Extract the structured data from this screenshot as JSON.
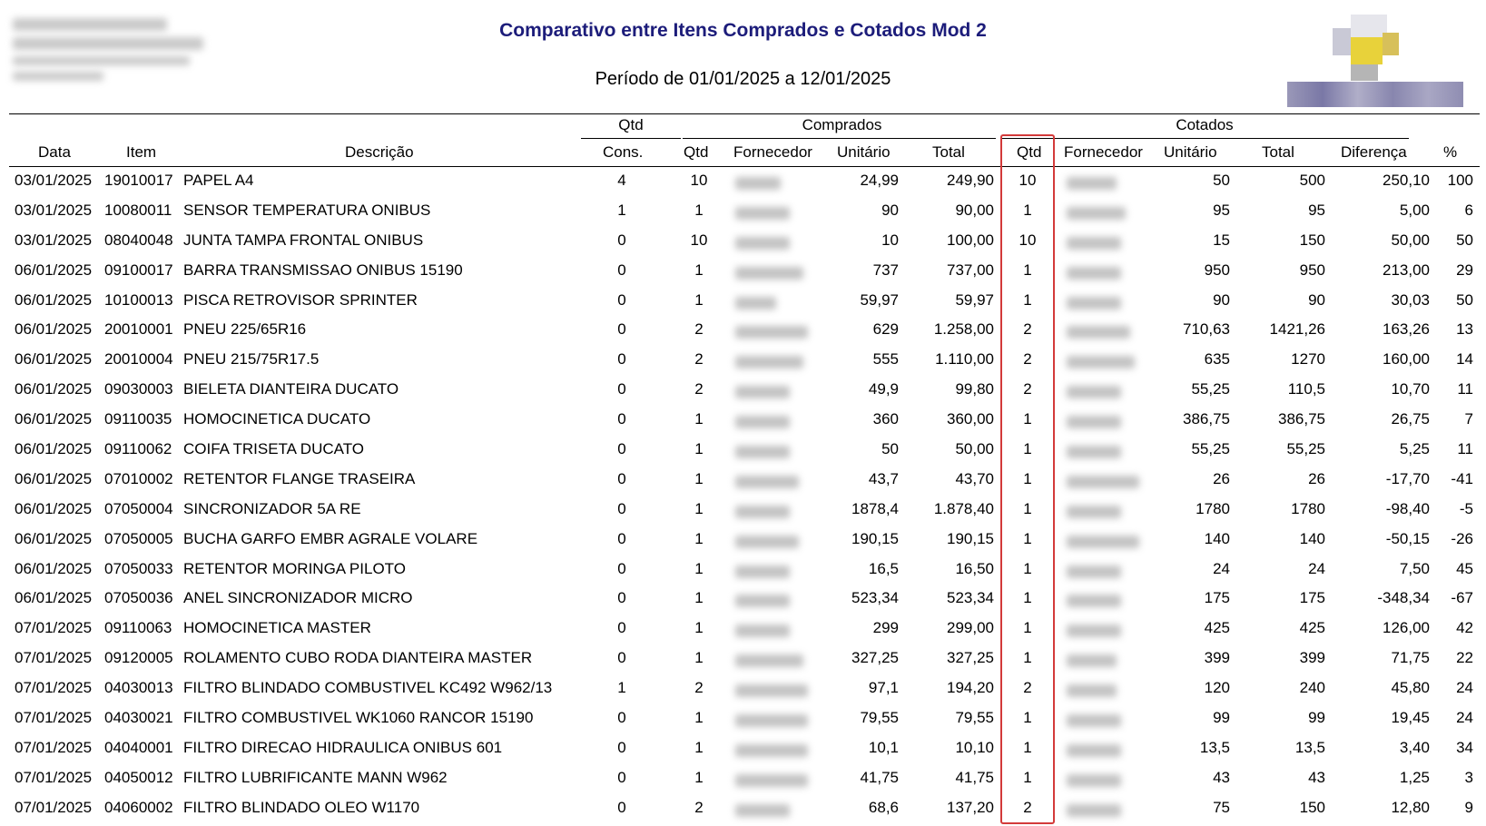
{
  "report": {
    "title": "Comparativo entre Itens Comprados e Cotados Mod 2",
    "period": "Período de 01/01/2025 a 12/01/2025"
  },
  "groups": {
    "qtd": "Qtd",
    "comprados": "Comprados",
    "cotados": "Cotados"
  },
  "columns": {
    "data": "Data",
    "item": "Item",
    "descricao": "Descrição",
    "cons": "Cons.",
    "qtd": "Qtd",
    "fornecedor": "Fornecedor",
    "unitario": "Unitário",
    "total": "Total",
    "qtd_cot": "Qtd",
    "fornecedor_cot": "Fornecedor",
    "unitario_cot": "Unitário",
    "total_cot": "Total",
    "diferenca": "Diferença",
    "pct": "%"
  },
  "highlight_color": "#d33a3a",
  "rows": [
    {
      "data": "03/01/2025",
      "item": "19010017",
      "desc": "PAPEL A4",
      "cons": "4",
      "qtd": "10",
      "unit": "24,99",
      "total": "249,90",
      "qtd_cot": "10",
      "unit_cot": "50",
      "total_cot": "500",
      "dif": "250,10",
      "pct": "100"
    },
    {
      "data": "03/01/2025",
      "item": "10080011",
      "desc": "SENSOR TEMPERATURA ONIBUS",
      "cons": "1",
      "qtd": "1",
      "unit": "90",
      "total": "90,00",
      "qtd_cot": "1",
      "unit_cot": "95",
      "total_cot": "95",
      "dif": "5,00",
      "pct": "6"
    },
    {
      "data": "03/01/2025",
      "item": "08040048",
      "desc": "JUNTA TAMPA FRONTAL ONIBUS",
      "cons": "0",
      "qtd": "10",
      "unit": "10",
      "total": "100,00",
      "qtd_cot": "10",
      "unit_cot": "15",
      "total_cot": "150",
      "dif": "50,00",
      "pct": "50"
    },
    {
      "data": "06/01/2025",
      "item": "09100017",
      "desc": "BARRA TRANSMISSAO ONIBUS 15190",
      "cons": "0",
      "qtd": "1",
      "unit": "737",
      "total": "737,00",
      "qtd_cot": "1",
      "unit_cot": "950",
      "total_cot": "950",
      "dif": "213,00",
      "pct": "29"
    },
    {
      "data": "06/01/2025",
      "item": "10100013",
      "desc": "PISCA RETROVISOR SPRINTER",
      "cons": "0",
      "qtd": "1",
      "unit": "59,97",
      "total": "59,97",
      "qtd_cot": "1",
      "unit_cot": "90",
      "total_cot": "90",
      "dif": "30,03",
      "pct": "50"
    },
    {
      "data": "06/01/2025",
      "item": "20010001",
      "desc": "PNEU 225/65R16",
      "cons": "0",
      "qtd": "2",
      "unit": "629",
      "total": "1.258,00",
      "qtd_cot": "2",
      "unit_cot": "710,63",
      "total_cot": "1421,26",
      "dif": "163,26",
      "pct": "13"
    },
    {
      "data": "06/01/2025",
      "item": "20010004",
      "desc": "PNEU 215/75R17.5",
      "cons": "0",
      "qtd": "2",
      "unit": "555",
      "total": "1.110,00",
      "qtd_cot": "2",
      "unit_cot": "635",
      "total_cot": "1270",
      "dif": "160,00",
      "pct": "14"
    },
    {
      "data": "06/01/2025",
      "item": "09030003",
      "desc": "BIELETA DIANTEIRA DUCATO",
      "cons": "0",
      "qtd": "2",
      "unit": "49,9",
      "total": "99,80",
      "qtd_cot": "2",
      "unit_cot": "55,25",
      "total_cot": "110,5",
      "dif": "10,70",
      "pct": "11"
    },
    {
      "data": "06/01/2025",
      "item": "09110035",
      "desc": "HOMOCINETICA DUCATO",
      "cons": "0",
      "qtd": "1",
      "unit": "360",
      "total": "360,00",
      "qtd_cot": "1",
      "unit_cot": "386,75",
      "total_cot": "386,75",
      "dif": "26,75",
      "pct": "7"
    },
    {
      "data": "06/01/2025",
      "item": "09110062",
      "desc": "COIFA TRISETA DUCATO",
      "cons": "0",
      "qtd": "1",
      "unit": "50",
      "total": "50,00",
      "qtd_cot": "1",
      "unit_cot": "55,25",
      "total_cot": "55,25",
      "dif": "5,25",
      "pct": "11"
    },
    {
      "data": "06/01/2025",
      "item": "07010002",
      "desc": "RETENTOR FLANGE TRASEIRA",
      "cons": "0",
      "qtd": "1",
      "unit": "43,7",
      "total": "43,70",
      "qtd_cot": "1",
      "unit_cot": "26",
      "total_cot": "26",
      "dif": "-17,70",
      "pct": "-41"
    },
    {
      "data": "06/01/2025",
      "item": "07050004",
      "desc": "SINCRONIZADOR 5A RE",
      "cons": "0",
      "qtd": "1",
      "unit": "1878,4",
      "total": "1.878,40",
      "qtd_cot": "1",
      "unit_cot": "1780",
      "total_cot": "1780",
      "dif": "-98,40",
      "pct": "-5"
    },
    {
      "data": "06/01/2025",
      "item": "07050005",
      "desc": "BUCHA GARFO EMBR AGRALE VOLARE",
      "cons": "0",
      "qtd": "1",
      "unit": "190,15",
      "total": "190,15",
      "qtd_cot": "1",
      "unit_cot": "140",
      "total_cot": "140",
      "dif": "-50,15",
      "pct": "-26"
    },
    {
      "data": "06/01/2025",
      "item": "07050033",
      "desc": "RETENTOR MORINGA PILOTO",
      "cons": "0",
      "qtd": "1",
      "unit": "16,5",
      "total": "16,50",
      "qtd_cot": "1",
      "unit_cot": "24",
      "total_cot": "24",
      "dif": "7,50",
      "pct": "45"
    },
    {
      "data": "06/01/2025",
      "item": "07050036",
      "desc": "ANEL SINCRONIZADOR MICRO",
      "cons": "0",
      "qtd": "1",
      "unit": "523,34",
      "total": "523,34",
      "qtd_cot": "1",
      "unit_cot": "175",
      "total_cot": "175",
      "dif": "-348,34",
      "pct": "-67"
    },
    {
      "data": "07/01/2025",
      "item": "09110063",
      "desc": "HOMOCINETICA MASTER",
      "cons": "0",
      "qtd": "1",
      "unit": "299",
      "total": "299,00",
      "qtd_cot": "1",
      "unit_cot": "425",
      "total_cot": "425",
      "dif": "126,00",
      "pct": "42"
    },
    {
      "data": "07/01/2025",
      "item": "09120005",
      "desc": "ROLAMENTO CUBO RODA DIANTEIRA MASTER",
      "cons": "0",
      "qtd": "1",
      "unit": "327,25",
      "total": "327,25",
      "qtd_cot": "1",
      "unit_cot": "399",
      "total_cot": "399",
      "dif": "71,75",
      "pct": "22"
    },
    {
      "data": "07/01/2025",
      "item": "04030013",
      "desc": "FILTRO BLINDADO COMBUSTIVEL KC492 W962/13",
      "cons": "1",
      "qtd": "2",
      "unit": "97,1",
      "total": "194,20",
      "qtd_cot": "2",
      "unit_cot": "120",
      "total_cot": "240",
      "dif": "45,80",
      "pct": "24"
    },
    {
      "data": "07/01/2025",
      "item": "04030021",
      "desc": "FILTRO COMBUSTIVEL WK1060 RANCOR 15190",
      "cons": "0",
      "qtd": "1",
      "unit": "79,55",
      "total": "79,55",
      "qtd_cot": "1",
      "unit_cot": "99",
      "total_cot": "99",
      "dif": "19,45",
      "pct": "24"
    },
    {
      "data": "07/01/2025",
      "item": "04040001",
      "desc": "FILTRO DIRECAO HIDRAULICA ONIBUS 601",
      "cons": "0",
      "qtd": "1",
      "unit": "10,1",
      "total": "10,10",
      "qtd_cot": "1",
      "unit_cot": "13,5",
      "total_cot": "13,5",
      "dif": "3,40",
      "pct": "34"
    },
    {
      "data": "07/01/2025",
      "item": "04050012",
      "desc": "FILTRO LUBRIFICANTE MANN W962",
      "cons": "0",
      "qtd": "1",
      "unit": "41,75",
      "total": "41,75",
      "qtd_cot": "1",
      "unit_cot": "43",
      "total_cot": "43",
      "dif": "1,25",
      "pct": "3"
    },
    {
      "data": "07/01/2025",
      "item": "04060002",
      "desc": "FILTRO BLINDADO OLEO W1170",
      "cons": "0",
      "qtd": "2",
      "unit": "68,6",
      "total": "137,20",
      "qtd_cot": "2",
      "unit_cot": "75",
      "total_cot": "150",
      "dif": "12,80",
      "pct": "9"
    }
  ]
}
